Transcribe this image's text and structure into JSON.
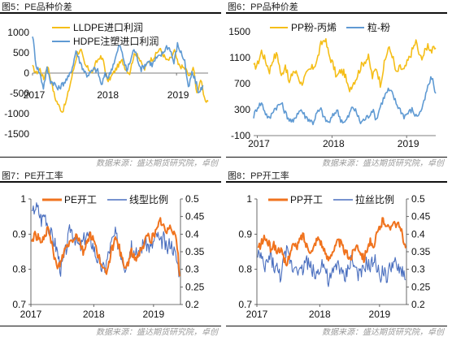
{
  "colors": {
    "orange": "#f0731e",
    "blue": "#4a7fc1",
    "yellow": "#f5be18",
    "lightblue": "#5f9ad3"
  },
  "panels": [
    {
      "caption": "图5：PE品种价差",
      "source": "数据来源：盛达期货研究院，卓创"
    },
    {
      "caption": "图6：PP品种价差",
      "source": "数据来源：盛达期货研究院，卓创"
    },
    {
      "caption": "图7：PE开工率",
      "source": "数据来源：盛达期货研究院，卓创"
    },
    {
      "caption": "图8：PP开工率",
      "source": "数据来源：盛达期货研究院，卓创"
    }
  ],
  "chart_data": [
    {
      "type": "line",
      "x_labels": [
        "2017",
        "2018",
        "2019"
      ],
      "y_ticks": [
        1000,
        500,
        0,
        -500,
        -1000,
        -1500
      ],
      "ylim": [
        -1500,
        1000
      ],
      "series": [
        {
          "name": "LLDPE进口利润",
          "color": "#f5be18",
          "values": [
            150,
            0,
            100,
            -150,
            200,
            -200,
            -600,
            -800,
            -950,
            -700,
            -300,
            100,
            500,
            550,
            200,
            100,
            0,
            250,
            400,
            300,
            -200,
            -100,
            50,
            200,
            300,
            100,
            0,
            400,
            500,
            250,
            100,
            300,
            350,
            450,
            600,
            450,
            300,
            350,
            550,
            200,
            150,
            100,
            -100,
            150,
            -500,
            -150,
            -650,
            -700
          ]
        },
        {
          "name": "HDPE注塑进口利润",
          "color": "#5f9ad3",
          "values": [
            950,
            200,
            0,
            -350,
            100,
            -200,
            -250,
            -400,
            -300,
            -200,
            -100,
            150,
            550,
            300,
            100,
            -50,
            0,
            100,
            50,
            -300,
            -50,
            -100,
            150,
            400,
            700,
            400,
            50,
            300,
            600,
            350,
            100,
            200,
            300,
            200,
            350,
            400,
            500,
            650,
            600,
            250,
            700,
            500,
            300,
            -400,
            0,
            -200,
            -500,
            -300
          ]
        }
      ]
    },
    {
      "type": "line",
      "x_labels": [
        "2017",
        "2018",
        "2019"
      ],
      "y_ticks": [
        1500,
        1100,
        700,
        300,
        -100
      ],
      "ylim": [
        -100,
        1500
      ],
      "series": [
        {
          "name": "PP粉-丙烯",
          "color": "#f5be18",
          "values": [
            950,
            1000,
            1200,
            1050,
            900,
            1100,
            1150,
            800,
            1000,
            700,
            900,
            850,
            700,
            800,
            900,
            950,
            1050,
            1300,
            1400,
            1150,
            1000,
            800,
            900,
            850,
            600,
            700,
            800,
            950,
            1050,
            1100,
            800,
            950,
            700,
            1000,
            1250,
            1150,
            850,
            950,
            900,
            1050,
            1200,
            1350,
            1100,
            1150,
            1300,
            1200,
            1250
          ]
        },
        {
          "name": "粒-粉",
          "color": "#5f9ad3",
          "values": [
            200,
            350,
            400,
            250,
            150,
            300,
            350,
            400,
            250,
            150,
            100,
            250,
            300,
            200,
            150,
            100,
            250,
            300,
            150,
            100,
            200,
            300,
            150,
            100,
            200,
            350,
            250,
            100,
            150,
            200,
            300,
            150,
            350,
            500,
            600,
            550,
            400,
            300,
            200,
            250,
            300,
            200,
            250,
            400,
            650,
            800,
            550
          ]
        }
      ]
    },
    {
      "type": "line",
      "x_labels": [
        "2017",
        "2018",
        "2019"
      ],
      "y_ticks_left": [
        1,
        0.9,
        0.8,
        0.7
      ],
      "y_ticks_right": [
        0.5,
        0.45,
        0.4,
        0.35,
        0.3,
        0.25,
        0.2
      ],
      "ylim_left": [
        0.7,
        1.0
      ],
      "ylim_right": [
        0.2,
        0.5
      ],
      "series": [
        {
          "name": "PE开工",
          "color": "#f0731e",
          "axis": "left",
          "values": [
            0.88,
            0.9,
            0.89,
            0.87,
            0.9,
            0.91,
            0.88,
            0.84,
            0.8,
            0.82,
            0.85,
            0.87,
            0.88,
            0.89,
            0.9,
            0.88,
            0.85,
            0.87,
            0.9,
            0.89,
            0.86,
            0.83,
            0.8,
            0.79,
            0.82,
            0.86,
            0.88,
            0.87,
            0.83,
            0.8,
            0.82,
            0.85,
            0.83,
            0.84,
            0.86,
            0.87,
            0.9,
            0.88,
            0.9,
            0.91,
            0.94,
            0.92,
            0.9,
            0.93,
            0.91,
            0.89,
            0.78
          ]
        },
        {
          "name": "线型比例",
          "color": "#4a6fbf",
          "axis": "right",
          "values": [
            0.45,
            0.48,
            0.47,
            0.44,
            0.46,
            0.43,
            0.4,
            0.38,
            0.35,
            0.3,
            0.33,
            0.37,
            0.42,
            0.4,
            0.38,
            0.36,
            0.38,
            0.4,
            0.39,
            0.37,
            0.34,
            0.32,
            0.3,
            0.31,
            0.35,
            0.38,
            0.4,
            0.37,
            0.34,
            0.31,
            0.33,
            0.36,
            0.35,
            0.33,
            0.36,
            0.38,
            0.37,
            0.36,
            0.38,
            0.4,
            0.37,
            0.39,
            0.35,
            0.38,
            0.36,
            0.33,
            0.29
          ]
        }
      ]
    },
    {
      "type": "line",
      "x_labels": [
        "2017",
        "2018",
        "2019"
      ],
      "y_ticks_left": [
        1,
        0.9,
        0.8,
        0.7
      ],
      "y_ticks_right": [
        0.5,
        0.45,
        0.4,
        0.35,
        0.3,
        0.25,
        0.2
      ],
      "ylim_left": [
        0.7,
        1.0
      ],
      "ylim_right": [
        0.2,
        0.5
      ],
      "series": [
        {
          "name": "PP开工",
          "color": "#f0731e",
          "axis": "left",
          "values": [
            0.86,
            0.87,
            0.89,
            0.88,
            0.86,
            0.87,
            0.85,
            0.86,
            0.83,
            0.81,
            0.85,
            0.87,
            0.86,
            0.88,
            0.9,
            0.87,
            0.86,
            0.85,
            0.88,
            0.89,
            0.87,
            0.84,
            0.83,
            0.85,
            0.86,
            0.88,
            0.87,
            0.85,
            0.84,
            0.83,
            0.86,
            0.87,
            0.85,
            0.83,
            0.86,
            0.88,
            0.85,
            0.9,
            0.92,
            0.94,
            0.93,
            0.91,
            0.94,
            0.93,
            0.92,
            0.9,
            0.86
          ]
        },
        {
          "name": "拉丝比例",
          "color": "#4a6fbf",
          "axis": "right",
          "values": [
            0.35,
            0.33,
            0.3,
            0.32,
            0.34,
            0.31,
            0.3,
            0.28,
            0.32,
            0.35,
            0.33,
            0.3,
            0.32,
            0.29,
            0.3,
            0.33,
            0.31,
            0.3,
            0.28,
            0.3,
            0.32,
            0.3,
            0.26,
            0.28,
            0.3,
            0.32,
            0.29,
            0.27,
            0.3,
            0.33,
            0.31,
            0.29,
            0.28,
            0.3,
            0.32,
            0.3,
            0.33,
            0.31,
            0.28,
            0.3,
            0.27,
            0.3,
            0.32,
            0.31,
            0.29,
            0.3,
            0.27
          ]
        }
      ]
    }
  ]
}
